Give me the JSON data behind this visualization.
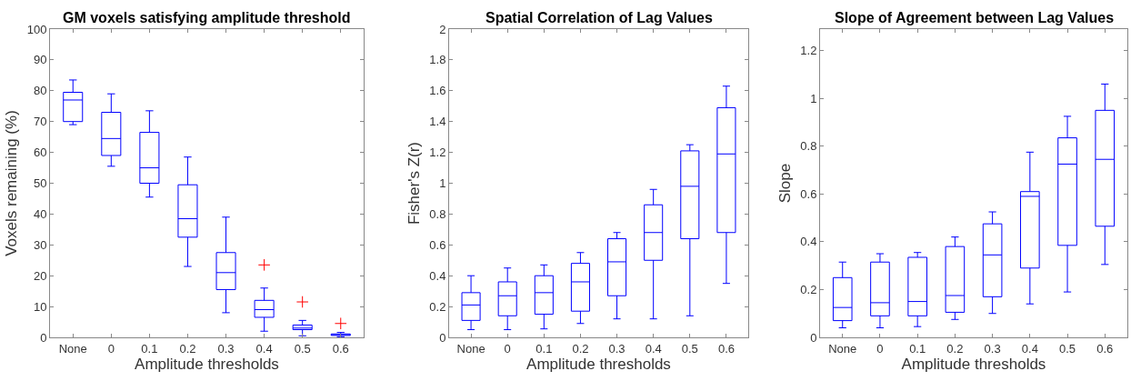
{
  "chart_data": [
    {
      "type": "box",
      "title": "GM voxels satisfying amplitude threshold",
      "xlabel": "Amplitude thresholds",
      "ylabel": "Voxels remaining (%)",
      "categories": [
        "None",
        "0",
        "0.1",
        "0.2",
        "0.3",
        "0.4",
        "0.5",
        "0.6"
      ],
      "ylim": [
        0,
        100
      ],
      "yticks": [
        0,
        10,
        20,
        30,
        40,
        50,
        60,
        70,
        80,
        90,
        100
      ],
      "marker": "cross",
      "series": [
        {
          "color": "#0000ff",
          "boxes": [
            {
              "low": 69,
              "q1": 70,
              "median": 77,
              "q3": 79.5,
              "high": 83.5
            },
            {
              "low": 55.5,
              "q1": 59,
              "median": 64.5,
              "q3": 73,
              "high": 79
            },
            {
              "low": 45.5,
              "q1": 50,
              "median": 55,
              "q3": 66.5,
              "high": 73.5
            },
            {
              "low": 23,
              "q1": 32.5,
              "median": 38.5,
              "q3": 49.5,
              "high": 58.5
            },
            {
              "low": 8,
              "q1": 15.5,
              "median": 21,
              "q3": 27.5,
              "high": 39
            },
            {
              "low": 2,
              "q1": 6.5,
              "median": 9,
              "q3": 12,
              "high": 16,
              "outliers": [
                23.5
              ]
            },
            {
              "low": 0.5,
              "q1": 2.5,
              "median": 3,
              "q3": 4,
              "high": 5.5,
              "outliers": [
                11.5
              ]
            },
            {
              "low": 0.2,
              "q1": 0.6,
              "median": 0.9,
              "q3": 1.1,
              "high": 1.6,
              "outliers": [
                4.5
              ]
            }
          ]
        }
      ]
    },
    {
      "type": "box",
      "title": "Spatial Correlation of Lag Values",
      "xlabel": "Amplitude thresholds",
      "ylabel": "Fisher's Z(r)",
      "categories": [
        "None",
        "0",
        "0.1",
        "0.2",
        "0.3",
        "0.4",
        "0.5",
        "0.6"
      ],
      "ylim": [
        0,
        2
      ],
      "yticks": [
        0,
        0.2,
        0.4,
        0.6,
        0.8,
        1,
        1.2,
        1.4,
        1.6,
        1.8,
        2
      ],
      "marker": "cross",
      "series": [
        {
          "color": "#0000ff",
          "boxes": [
            {
              "low": 0.05,
              "q1": 0.11,
              "median": 0.21,
              "q3": 0.29,
              "high": 0.4
            },
            {
              "low": 0.05,
              "q1": 0.14,
              "median": 0.27,
              "q3": 0.36,
              "high": 0.45
            },
            {
              "low": 0.055,
              "q1": 0.15,
              "median": 0.29,
              "q3": 0.4,
              "high": 0.47
            },
            {
              "low": 0.09,
              "q1": 0.17,
              "median": 0.36,
              "q3": 0.48,
              "high": 0.55
            },
            {
              "low": 0.12,
              "q1": 0.27,
              "median": 0.49,
              "q3": 0.64,
              "high": 0.68
            },
            {
              "low": 0.12,
              "q1": 0.5,
              "median": 0.68,
              "q3": 0.86,
              "high": 0.96
            },
            {
              "low": 0.14,
              "q1": 0.64,
              "median": 0.98,
              "q3": 1.21,
              "high": 1.25
            },
            {
              "low": 0.35,
              "q1": 0.68,
              "median": 1.19,
              "q3": 1.49,
              "high": 1.63
            }
          ]
        }
      ]
    },
    {
      "type": "box",
      "title": "Slope of Agreement between Lag Values",
      "xlabel": "Amplitude thresholds",
      "ylabel": "Slope",
      "categories": [
        "None",
        "0",
        "0.1",
        "0.2",
        "0.3",
        "0.4",
        "0.5",
        "0.6"
      ],
      "ylim": [
        0,
        1.29
      ],
      "yticks": [
        0,
        0.2,
        0.4,
        0.6,
        0.8,
        1,
        1.2
      ],
      "marker": "cross",
      "series": [
        {
          "color": "#0000ff",
          "boxes": [
            {
              "low": 0.04,
              "q1": 0.07,
              "median": 0.125,
              "q3": 0.25,
              "high": 0.315
            },
            {
              "low": 0.04,
              "q1": 0.09,
              "median": 0.145,
              "q3": 0.315,
              "high": 0.35
            },
            {
              "low": 0.045,
              "q1": 0.09,
              "median": 0.15,
              "q3": 0.335,
              "high": 0.355
            },
            {
              "low": 0.075,
              "q1": 0.105,
              "median": 0.175,
              "q3": 0.38,
              "high": 0.42
            },
            {
              "low": 0.1,
              "q1": 0.17,
              "median": 0.345,
              "q3": 0.475,
              "high": 0.525
            },
            {
              "low": 0.14,
              "q1": 0.29,
              "median": 0.59,
              "q3": 0.61,
              "high": 0.775
            },
            {
              "low": 0.19,
              "q1": 0.385,
              "median": 0.725,
              "q3": 0.835,
              "high": 0.925
            },
            {
              "low": 0.305,
              "q1": 0.465,
              "median": 0.745,
              "q3": 0.95,
              "high": 1.06
            }
          ]
        }
      ]
    }
  ]
}
